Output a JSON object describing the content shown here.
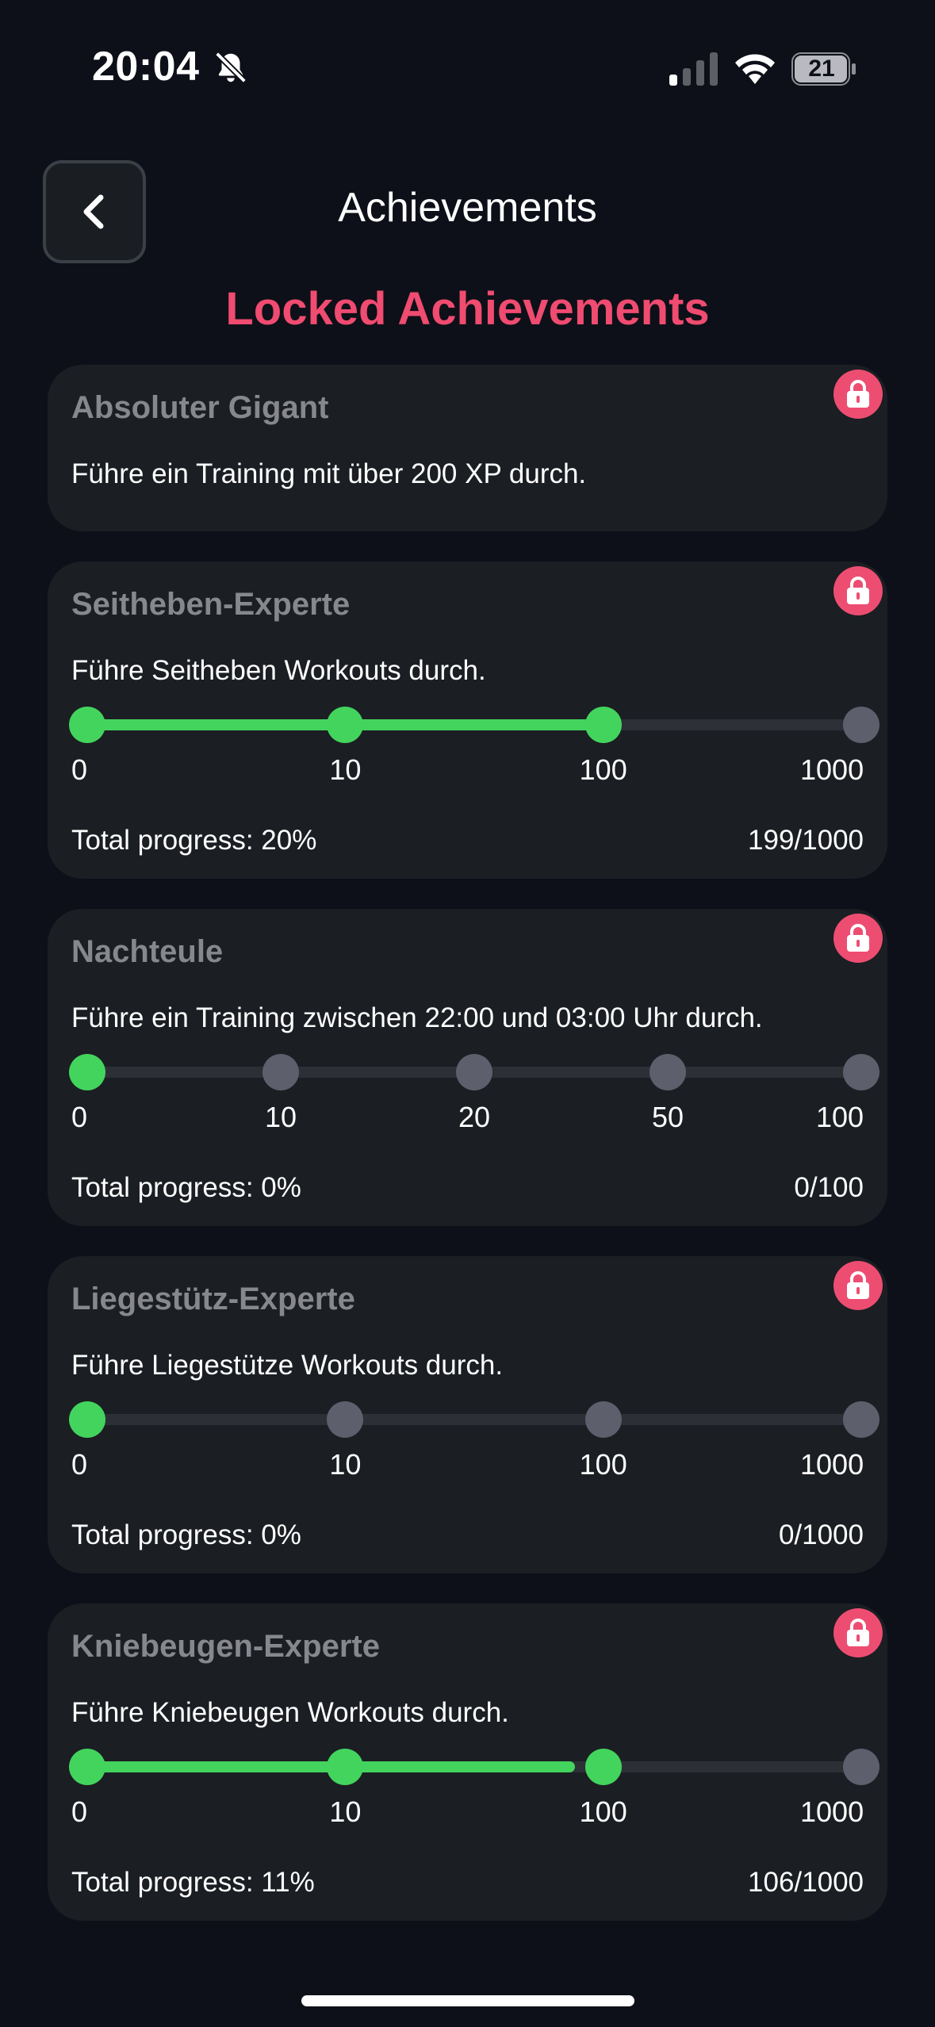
{
  "status_bar": {
    "time": "20:04",
    "battery": "21"
  },
  "header": {
    "title": "Achievements"
  },
  "section_title": "Locked Achievements",
  "achievements": [
    {
      "title": "Absoluter Gigant",
      "description": "Führe ein Training mit über 200 XP durch."
    },
    {
      "title": "Seitheben-Experte",
      "description": "Führe Seitheben Workouts durch.",
      "milestones": [
        "0",
        "10",
        "100",
        "1000"
      ],
      "milestones_reached": 3,
      "bar_progress": 0.67,
      "total_progress": "Total progress: 20%",
      "count": "199/1000"
    },
    {
      "title": "Nachteule",
      "description": "Führe ein Training zwischen 22:00 und 03:00 Uhr durch.",
      "milestones": [
        "0",
        "10",
        "20",
        "50",
        "100"
      ],
      "milestones_reached": 1,
      "bar_progress": 0,
      "total_progress": "Total progress: 0%",
      "count": "0/100"
    },
    {
      "title": "Liegestütz-Experte",
      "description": "Führe Liegestütze Workouts durch.",
      "milestones": [
        "0",
        "10",
        "100",
        "1000"
      ],
      "milestones_reached": 1,
      "bar_progress": 0,
      "total_progress": "Total progress: 0%",
      "count": "0/1000"
    },
    {
      "title": "Kniebeugen-Experte",
      "description": "Führe Kniebeugen Workouts durch.",
      "milestones": [
        "0",
        "10",
        "100",
        "1000"
      ],
      "milestones_reached": 3,
      "bar_progress": 0.63,
      "total_progress": "Total progress: 11%",
      "count": "106/1000"
    }
  ],
  "colors": {
    "accent": "#f04b70",
    "progress": "#43d45d",
    "inactive_dot": "#5d5f6c",
    "card_bg": "#1b1e23",
    "background": "#0d1018"
  },
  "icons": [
    "bell-slash-icon",
    "cellular-signal-icon",
    "wifi-icon",
    "battery-icon",
    "chevron-left-icon",
    "lock-icon"
  ]
}
